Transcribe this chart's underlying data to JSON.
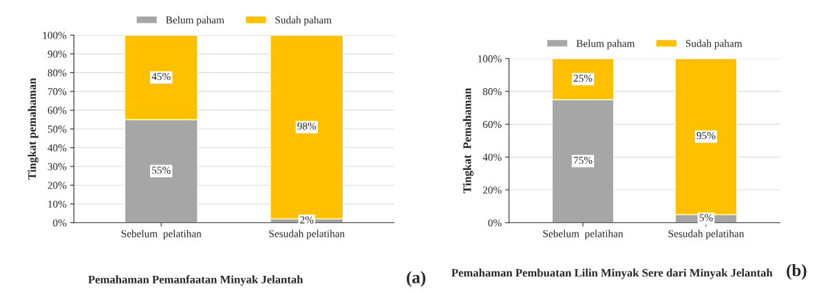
{
  "chart_data": [
    {
      "type": "bar",
      "stacked": true,
      "categories": [
        "Sebelum  pelatihan",
        "Sesudah pelatihan"
      ],
      "ylabel": "Tingkat pemahaman",
      "xlabel": "Pemahaman Pemanfaatan Minyak Jelantah",
      "annotations": [
        "(a)"
      ],
      "legend": "top",
      "grid": "y",
      "ylim": [
        0,
        100
      ],
      "yticks": [
        {
          "value": 0,
          "label": "0%"
        },
        {
          "value": 10,
          "label": "10%"
        },
        {
          "value": 20,
          "label": "20%"
        },
        {
          "value": 30,
          "label": "30%"
        },
        {
          "value": 40,
          "label": "40%"
        },
        {
          "value": 50,
          "label": "50%"
        },
        {
          "value": 60,
          "label": "60%"
        },
        {
          "value": 70,
          "label": "70%"
        },
        {
          "value": 80,
          "label": "80%"
        },
        {
          "value": 90,
          "label": "90%"
        },
        {
          "value": 100,
          "label": "100%"
        }
      ],
      "series": [
        {
          "name": "Belum paham",
          "color": "#a6a6a6",
          "values": [
            55,
            2
          ],
          "value_labels": [
            "55%",
            "2%"
          ]
        },
        {
          "name": "Sudah paham",
          "color": "#ffc000",
          "values": [
            45,
            98
          ],
          "value_labels": [
            "45%",
            "98%"
          ]
        }
      ]
    },
    {
      "type": "bar",
      "stacked": true,
      "categories": [
        "Sebelum  pelatihan",
        "Sesudah pelatihan"
      ],
      "ylabel": "Tingkat  Pemahaman",
      "xlabel": "Pemahaman Pembuatan Lilin Minyak Sere dari Minyak Jelantah",
      "annotations": [
        "(b)"
      ],
      "legend": "top",
      "grid": "y",
      "ylim": [
        0,
        100
      ],
      "yticks": [
        {
          "value": 0,
          "label": "0%"
        },
        {
          "value": 20,
          "label": "20%"
        },
        {
          "value": 40,
          "label": "40%"
        },
        {
          "value": 60,
          "label": "60%"
        },
        {
          "value": 80,
          "label": "80%"
        },
        {
          "value": 100,
          "label": "100%"
        }
      ],
      "series": [
        {
          "name": "Belum paham",
          "color": "#a6a6a6",
          "values": [
            75,
            5
          ],
          "value_labels": [
            "75%",
            "5%"
          ]
        },
        {
          "name": "Sudah paham",
          "color": "#ffc000",
          "values": [
            25,
            95
          ],
          "value_labels": [
            "25%",
            "95%"
          ]
        }
      ]
    }
  ]
}
